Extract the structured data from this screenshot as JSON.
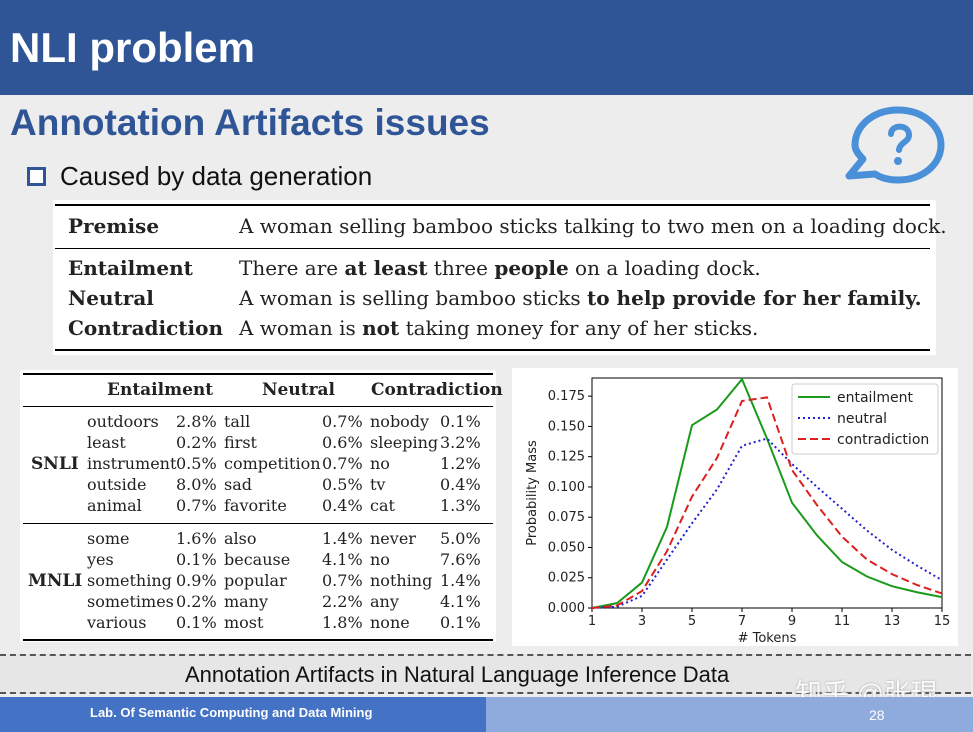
{
  "slide": {
    "title": "NLI problem",
    "subtitle": "Annotation Artifacts issues",
    "bullet": "Caused by data generation",
    "caption": "Annotation Artifacts in Natural Language Inference Data",
    "footer": "Lab. Of Semantic Computing and Data Mining",
    "page_number": "28",
    "watermark": "知乎 @张琨",
    "colors": {
      "title_bar": "#2f5597",
      "footer_left": "#4472c4",
      "footer_right": "#8faadc",
      "accent": "#2f5597"
    }
  },
  "example": {
    "premise_label": "Premise",
    "premise_text": "A woman selling bamboo sticks talking to two men on a loading dock.",
    "entailment_label": "Entailment",
    "entailment_parts": [
      "There are ",
      "at least",
      " three ",
      "people",
      " on a loading dock."
    ],
    "neutral_label": "Neutral",
    "neutral_parts": [
      "A woman is selling bamboo sticks ",
      "to help provide for her family."
    ],
    "contradiction_label": "Contradiction",
    "contradiction_parts": [
      "A woman is ",
      "not",
      " taking money for any of her sticks."
    ]
  },
  "artifacts_table": {
    "headers": [
      "Entailment",
      "Neutral",
      "Contradiction"
    ],
    "snli": {
      "label": "SNLI",
      "rows": [
        [
          "outdoors",
          "2.8%",
          "tall",
          "0.7%",
          "nobody",
          "0.1%"
        ],
        [
          "least",
          "0.2%",
          "first",
          "0.6%",
          "sleeping",
          "3.2%"
        ],
        [
          "instrument",
          "0.5%",
          "competition",
          "0.7%",
          "no",
          "1.2%"
        ],
        [
          "outside",
          "8.0%",
          "sad",
          "0.5%",
          "tv",
          "0.4%"
        ],
        [
          "animal",
          "0.7%",
          "favorite",
          "0.4%",
          "cat",
          "1.3%"
        ]
      ]
    },
    "mnli": {
      "label": "MNLI",
      "rows": [
        [
          "some",
          "1.6%",
          "also",
          "1.4%",
          "never",
          "5.0%"
        ],
        [
          "yes",
          "0.1%",
          "because",
          "4.1%",
          "no",
          "7.6%"
        ],
        [
          "something",
          "0.9%",
          "popular",
          "0.7%",
          "nothing",
          "1.4%"
        ],
        [
          "sometimes",
          "0.2%",
          "many",
          "2.2%",
          "any",
          "4.1%"
        ],
        [
          "various",
          "0.1%",
          "most",
          "1.8%",
          "none",
          "0.1%"
        ]
      ]
    }
  },
  "chart_data": {
    "type": "line",
    "title": "",
    "xlabel": "# Tokens",
    "ylabel": "Probability Mass",
    "xlim": [
      1,
      15
    ],
    "ylim": [
      0,
      0.19
    ],
    "x_ticks": [
      1,
      3,
      5,
      7,
      9,
      11,
      13,
      15
    ],
    "y_ticks": [
      "0.000",
      "0.025",
      "0.050",
      "0.075",
      "0.100",
      "0.125",
      "0.150",
      "0.175"
    ],
    "legend_position": "top-right",
    "x": [
      1,
      2,
      3,
      4,
      5,
      6,
      7,
      8,
      9,
      10,
      11,
      12,
      13,
      14,
      15
    ],
    "series": [
      {
        "name": "entailment",
        "color": "#1a9a1a",
        "style": "solid",
        "values": [
          0.0,
          0.004,
          0.021,
          0.067,
          0.151,
          0.164,
          0.189,
          0.14,
          0.087,
          0.06,
          0.038,
          0.026,
          0.018,
          0.013,
          0.009
        ]
      },
      {
        "name": "neutral",
        "color": "#1f1fcc",
        "style": "dotted",
        "values": [
          0.0,
          0.001,
          0.01,
          0.04,
          0.07,
          0.098,
          0.134,
          0.14,
          0.119,
          0.1,
          0.082,
          0.064,
          0.048,
          0.035,
          0.023
        ]
      },
      {
        "name": "contradiction",
        "color": "#dd1f1f",
        "style": "dashed",
        "values": [
          0.0,
          0.002,
          0.014,
          0.047,
          0.092,
          0.124,
          0.171,
          0.174,
          0.114,
          0.085,
          0.059,
          0.04,
          0.028,
          0.019,
          0.012
        ]
      }
    ]
  }
}
